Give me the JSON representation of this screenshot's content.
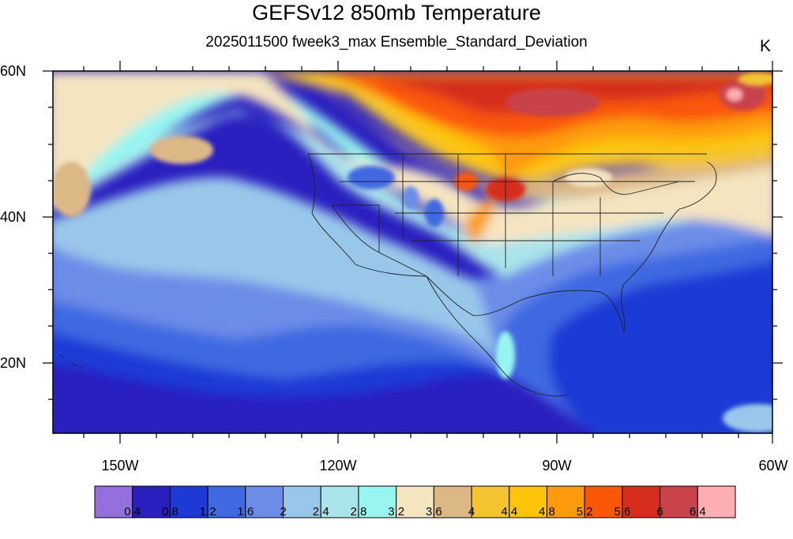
{
  "title": "GEFSv12 850mb Temperature",
  "subtitle": "2025011500 fweek3_max Ensemble_Standard_Deviation",
  "units": "K",
  "lat_labels": [
    "60N",
    "40N",
    "20N"
  ],
  "lon_labels": [
    "150W",
    "120W",
    "90W",
    "60W"
  ],
  "colorbar": {
    "colors": [
      "#9370db",
      "#2a1fbf",
      "#1e3ad6",
      "#4169e1",
      "#6b8de8",
      "#98c7ea",
      "#abe3ea",
      "#98f5f0",
      "#f5e4c0",
      "#dcb887",
      "#f3c430",
      "#fdc40a",
      "#fd9b0c",
      "#fa5708",
      "#d62d1e",
      "#c9434a",
      "#fdadb3"
    ],
    "labels": [
      "0.4",
      "0.8",
      "1.2",
      "1.6",
      "2",
      "2.4",
      "2.8",
      "3.2",
      "3.6",
      "4",
      "4.4",
      "4.8",
      "5.2",
      "5.6",
      "6",
      "6.4"
    ]
  }
}
